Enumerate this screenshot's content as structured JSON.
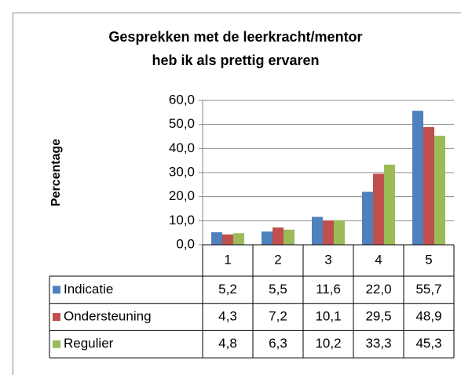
{
  "chart_data": {
    "type": "bar",
    "title": [
      "Gesprekken met de leerkracht/mentor",
      "heb ik als prettig ervaren"
    ],
    "y_label": "Percentage",
    "categories": [
      "1",
      "2",
      "3",
      "4",
      "5"
    ],
    "series": [
      {
        "name": "Indicatie",
        "color": "#4f81bd",
        "values": [
          5.2,
          5.5,
          11.6,
          22.0,
          55.7
        ],
        "value_labels": [
          "5,2",
          "5,5",
          "11,6",
          "22,0",
          "55,7"
        ]
      },
      {
        "name": "Ondersteuning",
        "color": "#c0504d",
        "values": [
          4.3,
          7.2,
          10.1,
          29.5,
          48.9
        ],
        "value_labels": [
          "4,3",
          "7,2",
          "10,1",
          "29,5",
          "48,9"
        ]
      },
      {
        "name": "Regulier",
        "color": "#9bbb59",
        "values": [
          4.8,
          6.3,
          10.2,
          33.3,
          45.3
        ],
        "value_labels": [
          "4,8",
          "6,3",
          "10,2",
          "33,3",
          "45,3"
        ]
      }
    ],
    "ylim": [
      0,
      60
    ],
    "yticks": [
      {
        "value": 0,
        "label": "0,0"
      },
      {
        "value": 10,
        "label": "10,0"
      },
      {
        "value": 20,
        "label": "20,0"
      },
      {
        "value": 30,
        "label": "30,0"
      },
      {
        "value": 40,
        "label": "40,0"
      },
      {
        "value": 50,
        "label": "50,0"
      },
      {
        "value": 60,
        "label": "60,0"
      }
    ],
    "grid": true
  }
}
